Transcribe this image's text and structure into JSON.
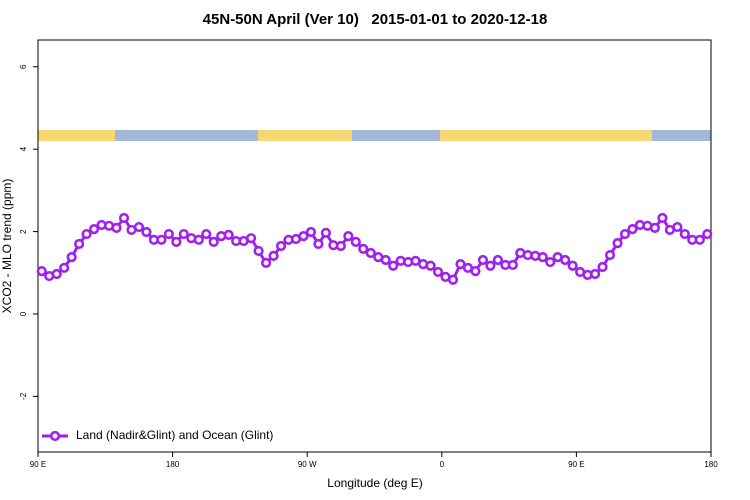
{
  "chart_data": {
    "type": "line",
    "title": "45N-50N April (Ver 10)   2015-01-01 to 2020-12-18",
    "x_label": "Longitude (deg E)",
    "y_label": "XCO2 - MLO trend (ppm)",
    "xlim": [
      90,
      540
    ],
    "xticks": [
      {
        "value": 90,
        "label": "90 E"
      },
      {
        "value": 180,
        "label": "180"
      },
      {
        "value": 270,
        "label": "90 W"
      },
      {
        "value": 360,
        "label": "0"
      },
      {
        "value": 450,
        "label": "90 E"
      },
      {
        "value": 540,
        "label": "180"
      }
    ],
    "ylim": [
      -3.35,
      6.65
    ],
    "yticks": [
      -2,
      0,
      2,
      4,
      6
    ],
    "grid": false,
    "legend": "bottom left",
    "x": [
      92.5,
      97.5,
      102.5,
      107.5,
      112.5,
      117.5,
      122.5,
      127.5,
      132.5,
      137.5,
      142.5,
      147.5,
      152.5,
      157.5,
      162.5,
      167.5,
      172.5,
      177.5,
      182.5,
      187.5,
      192.5,
      197.5,
      202.5,
      207.5,
      212.5,
      217.5,
      222.5,
      227.5,
      232.5,
      237.5,
      242.5,
      247.5,
      252.5,
      257.5,
      262.5,
      267.5,
      272.5,
      277.5,
      282.5,
      287.5,
      292.5,
      297.5,
      302.5,
      307.5,
      312.5,
      317.5,
      322.5,
      327.5,
      332.5,
      337.5,
      342.5,
      347.5,
      352.5,
      357.5,
      362.5,
      367.5,
      372.5,
      377.5,
      382.5,
      387.5,
      392.5,
      397.5,
      402.5,
      407.5,
      412.5,
      417.5,
      422.5,
      427.5,
      432.5,
      437.5,
      442.5,
      447.5,
      452.5,
      457.5,
      462.5,
      467.5,
      472.5,
      477.5,
      482.5,
      487.5,
      492.5,
      497.5,
      502.5,
      507.5,
      512.5,
      517.5,
      522.5,
      527.5,
      532.5,
      537.5
    ],
    "series": [
      {
        "name": "Land (Nadir&Glint) and Ocean (Glint)",
        "color": "#a020f0",
        "values": [
          1.04,
          0.92,
          0.97,
          1.12,
          1.38,
          1.7,
          1.94,
          2.06,
          2.16,
          2.14,
          2.09,
          2.33,
          2.04,
          2.11,
          1.99,
          1.8,
          1.8,
          1.94,
          1.75,
          1.94,
          1.84,
          1.8,
          1.94,
          1.75,
          1.89,
          1.92,
          1.77,
          1.77,
          1.84,
          1.53,
          1.24,
          1.41,
          1.65,
          1.8,
          1.82,
          1.89,
          1.99,
          1.7,
          1.97,
          1.67,
          1.65,
          1.89,
          1.75,
          1.58,
          1.48,
          1.38,
          1.31,
          1.17,
          1.29,
          1.26,
          1.29,
          1.21,
          1.17,
          1.02,
          0.9,
          0.83,
          1.21,
          1.12,
          1.04,
          1.31,
          1.17,
          1.31,
          1.19,
          1.19,
          1.48,
          1.43,
          1.41,
          1.38,
          1.26,
          1.38,
          1.31,
          1.17,
          1.02,
          0.95,
          0.97,
          1.14,
          1.43,
          1.72,
          1.94,
          2.06,
          2.16,
          2.14,
          2.09,
          2.33,
          2.04,
          2.11,
          1.94,
          1.8,
          1.8,
          1.94
        ]
      }
    ]
  }
}
